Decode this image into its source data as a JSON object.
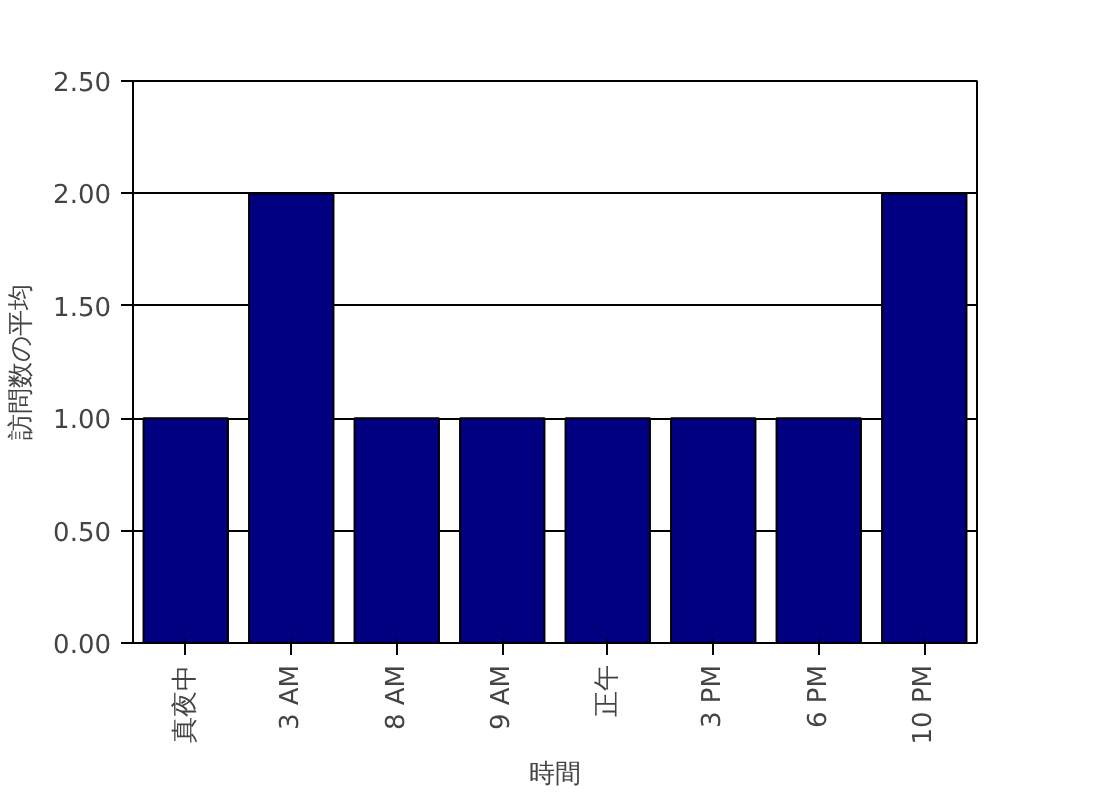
{
  "chart_data": {
    "type": "bar",
    "xlabel": "時間",
    "ylabel": "訪問数の平均",
    "categories": [
      "真夜中",
      "3 AM",
      "8 AM",
      "9 AM",
      "正午",
      "3 PM",
      "6 PM",
      "10 PM"
    ],
    "values": [
      1,
      2,
      1,
      1,
      1,
      1,
      1,
      2
    ],
    "color": "#000080",
    "ylim": [
      0,
      2.5
    ],
    "yticks": [
      {
        "value": 0,
        "label": "0.00"
      },
      {
        "value": 0.5,
        "label": "0.50"
      },
      {
        "value": 1,
        "label": "1.00"
      },
      {
        "value": 1.5,
        "label": "1.50"
      },
      {
        "value": 2,
        "label": "2.00"
      },
      {
        "value": 2.5,
        "label": "2.50"
      }
    ],
    "grid": "y"
  }
}
